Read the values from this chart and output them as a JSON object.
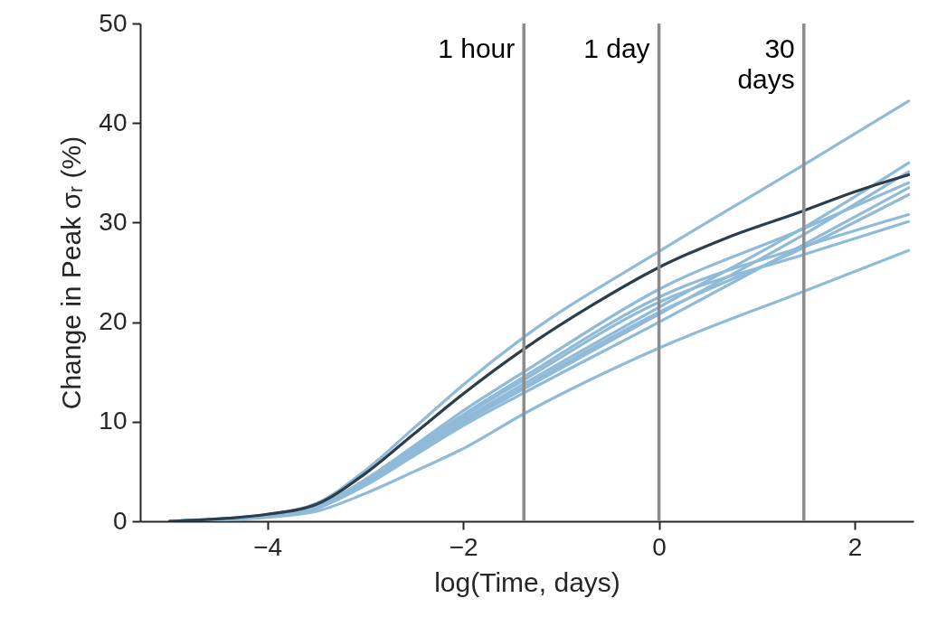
{
  "chart_data": {
    "type": "line",
    "xlabel": "log(Time, days)",
    "ylabel": "Change in Peak σᵣ (%)",
    "x": [
      -5,
      -4,
      -3.5,
      -3,
      -2.5,
      -2,
      -1.38,
      0,
      1.48,
      2.55
    ],
    "xlim": [
      -5.3,
      2.6
    ],
    "xticks": [
      -4,
      -2,
      0,
      2
    ],
    "ylim": [
      0,
      50
    ],
    "yticks": [
      0,
      10,
      20,
      30,
      40,
      50
    ],
    "grid": false,
    "series": [
      {
        "color": "#8fbbd9",
        "values": [
          0,
          0.7,
          1.8,
          5.1,
          9.4,
          13.7,
          18.5,
          27.1,
          35.8,
          42.2
        ]
      },
      {
        "color": "#8fbbd9",
        "values": [
          0,
          0.6,
          1.5,
          4.2,
          7.6,
          11.1,
          15.0,
          23.3,
          29.4,
          34.0
        ]
      },
      {
        "color": "#8fbbd9",
        "values": [
          0,
          0.6,
          1.4,
          4.0,
          7.4,
          10.7,
          14.5,
          22.5,
          27.6,
          30.8
        ]
      },
      {
        "color": "#8fbbd9",
        "values": [
          0,
          0.6,
          1.4,
          3.9,
          7.2,
          10.5,
          14.2,
          22.0,
          26.8,
          30.1
        ]
      },
      {
        "color": "#8fbbd9",
        "values": [
          0,
          0.6,
          1.4,
          3.8,
          7.0,
          10.2,
          13.8,
          21.5,
          29.5,
          36.0
        ]
      },
      {
        "color": "#8fbbd9",
        "values": [
          0,
          0.5,
          1.3,
          3.7,
          6.8,
          9.9,
          13.3,
          20.8,
          28.8,
          35.1
        ]
      },
      {
        "color": "#8fbbd9",
        "values": [
          0,
          0.5,
          1.3,
          3.6,
          6.6,
          9.6,
          12.9,
          20.0,
          27.8,
          33.5
        ]
      },
      {
        "color": "#8fbbd9",
        "values": [
          0,
          0.5,
          1.3,
          3.7,
          6.9,
          10.0,
          13.5,
          21.0,
          27.5,
          32.8
        ]
      },
      {
        "color": "#8fbbd9",
        "values": [
          0,
          0.4,
          1.0,
          2.8,
          5.0,
          7.3,
          10.8,
          17.4,
          23.1,
          27.2
        ]
      },
      {
        "color": "#2d3e4a",
        "x": [
          -5,
          -4,
          -3.5,
          -3,
          -2.5,
          -2,
          -1.38,
          -0.7,
          0,
          0.7,
          1.48,
          2.0,
          2.55
        ],
        "values": [
          0,
          0.7,
          1.7,
          4.8,
          8.8,
          12.8,
          17.3,
          21.6,
          25.5,
          28.5,
          31.2,
          33.1,
          34.8
        ]
      }
    ],
    "ref_lines": [
      {
        "axis": "x",
        "value": -1.38,
        "label": "1 hour",
        "color": "#8c8c8c"
      },
      {
        "axis": "x",
        "value": 0,
        "label": "1 day",
        "color": "#8c8c8c"
      },
      {
        "axis": "x",
        "value": 1.48,
        "label": "30\ndays",
        "color": "#8c8c8c"
      }
    ]
  }
}
